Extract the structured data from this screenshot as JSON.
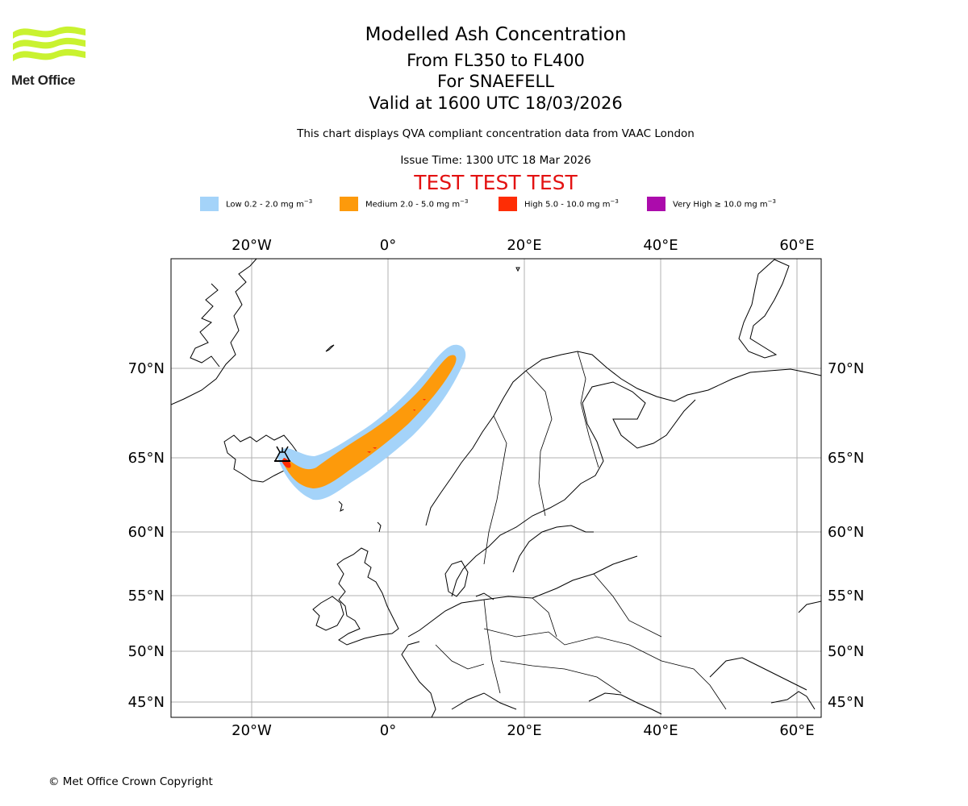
{
  "header": {
    "logo_text": "Met Office",
    "title": "Modelled Ash Concentration",
    "level_range": "From FL350 to FL400",
    "volcano": "For SNAEFELL",
    "valid_time": "Valid at 1600 UTC 18/03/2026",
    "subtitle": "This chart displays QVA compliant concentration data from VAAC London",
    "issue_time": "Issue Time: 1300 UTC 18 Mar 2026",
    "test_banner": "TEST TEST TEST"
  },
  "legend": [
    {
      "label": "Low 0.2 - 2.0 mg m",
      "unit_exp": "−3",
      "color": "#a4d3f9"
    },
    {
      "label": "Medium 2.0 - 5.0 mg m",
      "unit_exp": "−3",
      "color": "#fd9a0b"
    },
    {
      "label": "High 5.0 - 10.0 mg m",
      "unit_exp": "−3",
      "color": "#fe2d05"
    },
    {
      "label": "Very High  ≥  10.0 mg m",
      "unit_exp": "−3",
      "color": "#ac0bac"
    }
  ],
  "map": {
    "lon_labels": [
      "20°W",
      "0°",
      "20°E",
      "40°E",
      "60°E"
    ],
    "lat_labels": [
      "70°N",
      "65°N",
      "60°N",
      "55°N",
      "50°N",
      "45°N"
    ],
    "source_volcano_icon": "volcano-symbol-icon",
    "colors": {
      "grid": "#b0b0b0",
      "coast": "#000000",
      "frame": "#000000"
    }
  },
  "footer": {
    "copyright": "© Met Office Crown Copyright"
  }
}
